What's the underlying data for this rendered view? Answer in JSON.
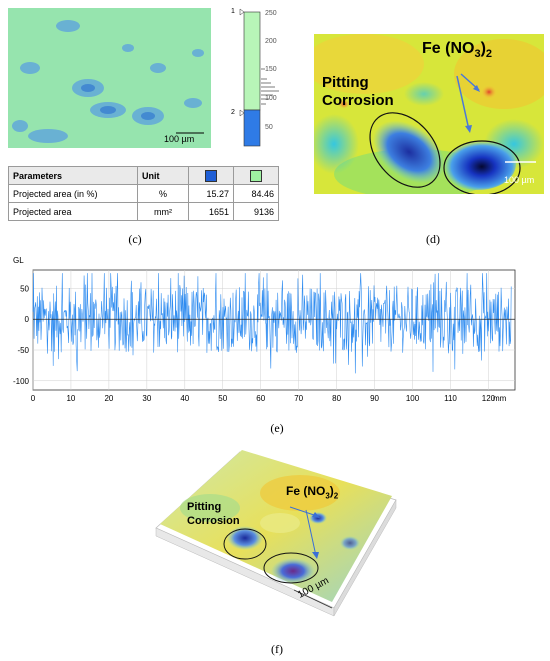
{
  "panel_c": {
    "scale_bar_label": "100 µm",
    "histogram_ticks": [
      "250",
      "200",
      "150",
      "100",
      "50"
    ],
    "threshold_markers": [
      "1",
      "2"
    ],
    "table": {
      "headers": [
        "Parameters",
        "Unit"
      ],
      "swatch_colors": [
        "#1f5fd6",
        "#9ff2a2"
      ],
      "rows": [
        {
          "param": "Projected area (in %)",
          "unit": "%",
          "v1": "15.27",
          "v2": "84.46"
        },
        {
          "param": "Projected area",
          "unit": "mm²",
          "v1": "1651",
          "v2": "9136"
        }
      ]
    },
    "caption": "(c)"
  },
  "panel_d": {
    "label_fe": "Fe (NO",
    "label_fe_sub1": "3",
    "label_fe_close": ")",
    "label_fe_sub2": "2",
    "label_pitting_1": "Pitting",
    "label_pitting_2": "Corrosion",
    "scale_bar_label": "100 µm",
    "caption": "(d)"
  },
  "panel_e": {
    "caption": "(e)",
    "chart_data": {
      "type": "line",
      "ylabel": "GL",
      "xunit": "mm",
      "x_ticks": [
        "0",
        "10",
        "20",
        "30",
        "40",
        "50",
        "60",
        "70",
        "80",
        "90",
        "100",
        "110",
        "120"
      ],
      "y_ticks": [
        "50",
        "0",
        "-50",
        "-100"
      ],
      "xlim": [
        0,
        127
      ],
      "ylim": [
        -115,
        80
      ],
      "series_color": "#2f8cf0",
      "series": [
        {
          "x_range": [
            0,
            126
          ],
          "n_points": 900,
          "amplitude_range": [
            -105,
            75
          ],
          "mean": 0
        }
      ],
      "grid": true
    }
  },
  "panel_f": {
    "label_fe": "Fe (NO",
    "label_fe_sub1": "3",
    "label_fe_close": ")",
    "label_fe_sub2": "2",
    "label_pitting_1": "Pitting",
    "label_pitting_2": "Corrosion",
    "scale_label": "100 µm",
    "caption": "(f)"
  }
}
